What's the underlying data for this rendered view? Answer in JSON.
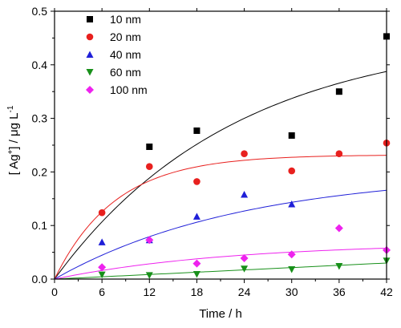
{
  "chart_data": {
    "type": "scatter",
    "xlabel": "Time / h",
    "ylabel": "[ Ag",
    "ylabel_superscript": "+",
    "ylabel_unit": "] / μg L",
    "ylabel_unit_superscript": "-1",
    "xlim": [
      0,
      42
    ],
    "ylim": [
      0,
      0.5
    ],
    "xticks": [
      "0",
      "6",
      "12",
      "18",
      "24",
      "30",
      "36",
      "42"
    ],
    "yticks": [
      "0.0",
      "0.1",
      "0.2",
      "0.3",
      "0.4",
      "0.5"
    ],
    "xtick_values": [
      0,
      6,
      12,
      18,
      24,
      30,
      36,
      42
    ],
    "ytick_values": [
      0,
      0.1,
      0.2,
      0.3,
      0.4,
      0.5
    ],
    "legend_position": "top-left",
    "grid": false,
    "series": [
      {
        "name": "10 nm",
        "marker": "square",
        "color": "#000000",
        "points": [
          [
            12,
            0.247
          ],
          [
            18,
            0.277
          ],
          [
            30,
            0.268
          ],
          [
            36,
            0.35
          ],
          [
            42,
            0.453
          ]
        ],
        "fit": {
          "amplitude": 0.46,
          "rate": 0.044
        }
      },
      {
        "name": "20 nm",
        "marker": "circle",
        "color": "#e8201e",
        "points": [
          [
            6,
            0.124
          ],
          [
            12,
            0.21
          ],
          [
            18,
            0.182
          ],
          [
            24,
            0.234
          ],
          [
            30,
            0.202
          ],
          [
            36,
            0.234
          ],
          [
            42,
            0.254
          ]
        ],
        "fit": {
          "amplitude": 0.232,
          "rate": 0.13
        }
      },
      {
        "name": "40 nm",
        "marker": "triangle-up",
        "color": "#1f1fd8",
        "points": [
          [
            6,
            0.069
          ],
          [
            12,
            0.073
          ],
          [
            18,
            0.117
          ],
          [
            24,
            0.158
          ],
          [
            30,
            0.14
          ]
        ],
        "fit": {
          "amplitude": 0.2,
          "rate": 0.042
        }
      },
      {
        "name": "60 nm",
        "marker": "triangle-down",
        "color": "#18901a",
        "points": [
          [
            6,
            0.008
          ],
          [
            12,
            0.007
          ],
          [
            18,
            0.009
          ],
          [
            24,
            0.019
          ],
          [
            30,
            0.018
          ],
          [
            36,
            0.024
          ],
          [
            42,
            0.034
          ]
        ],
        "fit": {
          "amplitude": 0.0,
          "rate": 0.0,
          "linear_end": 0.03
        }
      },
      {
        "name": "100 nm",
        "marker": "diamond",
        "color": "#ee22ee",
        "points": [
          [
            6,
            0.022
          ],
          [
            12,
            0.073
          ],
          [
            18,
            0.029
          ],
          [
            24,
            0.039
          ],
          [
            30,
            0.046
          ],
          [
            36,
            0.095
          ],
          [
            42,
            0.054
          ]
        ],
        "fit": {
          "amplitude": 0.068,
          "rate": 0.045
        }
      }
    ]
  }
}
